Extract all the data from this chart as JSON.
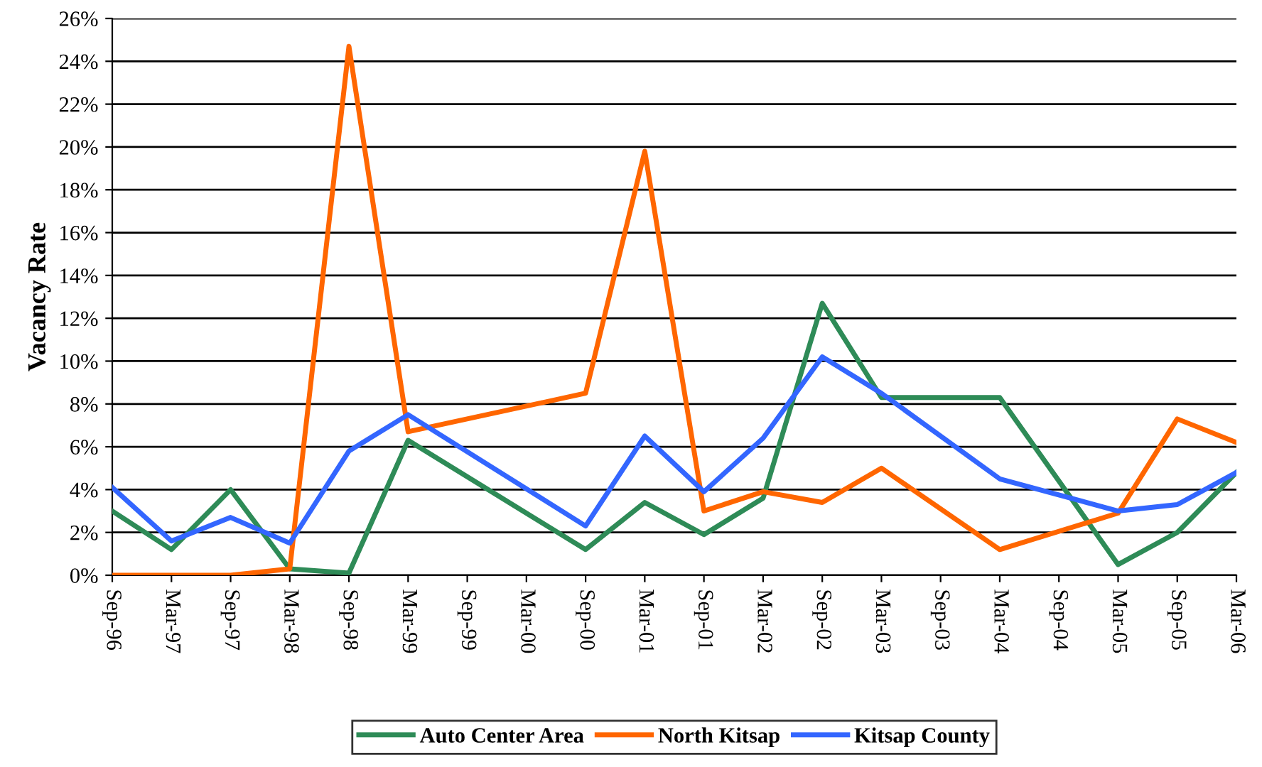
{
  "chart_data": {
    "type": "line",
    "ylabel": "Vacancy Rate",
    "categories": [
      "Sep-96",
      "Mar-97",
      "Sep-97",
      "Mar-98",
      "Sep-98",
      "Mar-99",
      "Sep-99",
      "Mar-00",
      "Sep-00",
      "Mar-01",
      "Sep-01",
      "Mar-02",
      "Sep-02",
      "Mar-03",
      "Sep-03",
      "Mar-04",
      "Sep-04",
      "Mar-05",
      "Sep-05",
      "Mar-06"
    ],
    "series": [
      {
        "name": "Auto Center Area",
        "color": "#2e8b57",
        "values": [
          3.0,
          1.2,
          4.0,
          0.3,
          0.1,
          6.3,
          null,
          null,
          1.2,
          3.4,
          1.9,
          3.6,
          12.7,
          8.3,
          null,
          8.3,
          null,
          0.5,
          2.0,
          4.8
        ]
      },
      {
        "name": "North Kitsap",
        "color": "#ff6600",
        "values": [
          0,
          0,
          0,
          0.3,
          24.7,
          6.7,
          null,
          null,
          8.5,
          19.8,
          3.0,
          3.9,
          3.4,
          5.0,
          null,
          1.2,
          null,
          2.9,
          7.3,
          6.2
        ]
      },
      {
        "name": "Kitsap County",
        "color": "#3366ff",
        "values": [
          4.1,
          1.6,
          2.7,
          1.5,
          5.8,
          7.5,
          null,
          null,
          2.3,
          6.5,
          3.9,
          6.4,
          10.2,
          8.5,
          null,
          4.5,
          null,
          3.0,
          3.3,
          4.8
        ]
      }
    ],
    "ylim": [
      0,
      26
    ],
    "yticks": [
      {
        "value": 0,
        "label": "0%"
      },
      {
        "value": 2,
        "label": "2%"
      },
      {
        "value": 4,
        "label": "4%"
      },
      {
        "value": 6,
        "label": "6%"
      },
      {
        "value": 8,
        "label": "8%"
      },
      {
        "value": 10,
        "label": "10%"
      },
      {
        "value": 12,
        "label": "12%"
      },
      {
        "value": 14,
        "label": "14%"
      },
      {
        "value": 16,
        "label": "16%"
      },
      {
        "value": 18,
        "label": "18%"
      },
      {
        "value": 20,
        "label": "20%"
      },
      {
        "value": 22,
        "label": "22%"
      },
      {
        "value": 24,
        "label": "24%"
      },
      {
        "value": 26,
        "label": "26%"
      }
    ],
    "grid": "y",
    "legend": "bottom",
    "marker": "none",
    "line_style": "solid"
  }
}
